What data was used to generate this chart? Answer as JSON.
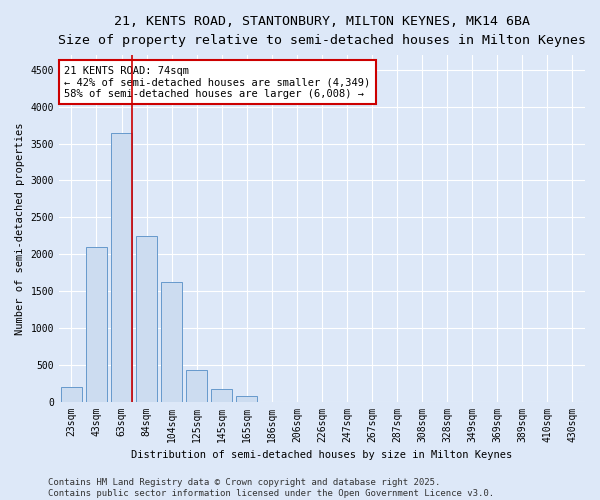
{
  "title1": "21, KENTS ROAD, STANTONBURY, MILTON KEYNES, MK14 6BA",
  "title2": "Size of property relative to semi-detached houses in Milton Keynes",
  "xlabel": "Distribution of semi-detached houses by size in Milton Keynes",
  "ylabel": "Number of semi-detached properties",
  "categories": [
    "23sqm",
    "43sqm",
    "63sqm",
    "84sqm",
    "104sqm",
    "125sqm",
    "145sqm",
    "165sqm",
    "186sqm",
    "206sqm",
    "226sqm",
    "247sqm",
    "267sqm",
    "287sqm",
    "308sqm",
    "328sqm",
    "349sqm",
    "369sqm",
    "389sqm",
    "410sqm",
    "430sqm"
  ],
  "values": [
    200,
    2100,
    3650,
    2250,
    1620,
    430,
    170,
    80,
    0,
    0,
    0,
    0,
    0,
    0,
    0,
    0,
    0,
    0,
    0,
    0,
    0
  ],
  "bar_color": "#ccdcf0",
  "bar_edge_color": "#6699cc",
  "vline_pos": 2.5,
  "vline_color": "#cc0000",
  "annotation_title": "21 KENTS ROAD: 74sqm",
  "annotation_line2": "← 42% of semi-detached houses are smaller (4,349)",
  "annotation_line3": "58% of semi-detached houses are larger (6,008) →",
  "annotation_box_color": "#ffffff",
  "annotation_box_edge": "#cc0000",
  "ylim": [
    0,
    4700
  ],
  "yticks": [
    0,
    500,
    1000,
    1500,
    2000,
    2500,
    3000,
    3500,
    4000,
    4500
  ],
  "footer1": "Contains HM Land Registry data © Crown copyright and database right 2025.",
  "footer2": "Contains public sector information licensed under the Open Government Licence v3.0.",
  "bg_color": "#dde8f8",
  "plot_bg_color": "#dde8f8",
  "title_fontsize": 9.5,
  "subtitle_fontsize": 8.5,
  "axis_fontsize": 7.5,
  "tick_fontsize": 7,
  "annotation_fontsize": 7.5,
  "footer_fontsize": 6.5
}
